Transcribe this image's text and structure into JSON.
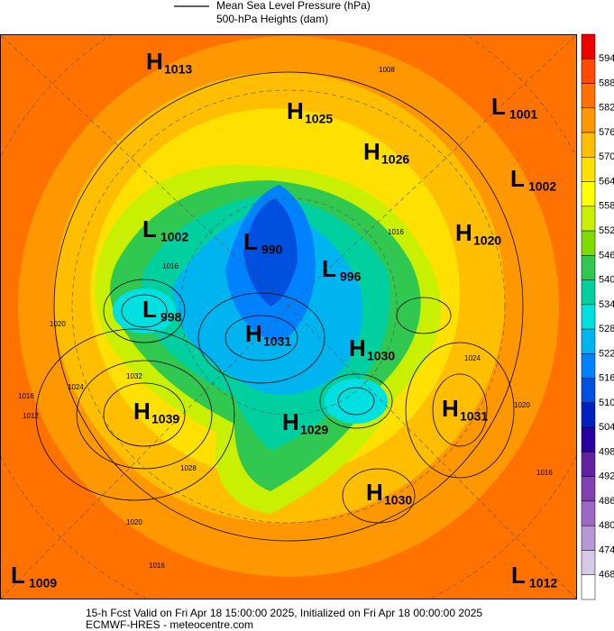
{
  "legend": {
    "items": [
      "Mean Sea Level Pressure (hPa)",
      "500-hPa Heights (dam)"
    ]
  },
  "centers": [
    {
      "letter": "H",
      "value": "1013"
    },
    {
      "letter": "H",
      "value": "1025"
    },
    {
      "letter": "H",
      "value": "1026"
    },
    {
      "letter": "L",
      "value": "1001"
    },
    {
      "letter": "L",
      "value": "1002"
    },
    {
      "letter": "L",
      "value": "1002"
    },
    {
      "letter": "L",
      "value": "990"
    },
    {
      "letter": "H",
      "value": "1020"
    },
    {
      "letter": "L",
      "value": "996"
    },
    {
      "letter": "L",
      "value": "998"
    },
    {
      "letter": "H",
      "value": "1031"
    },
    {
      "letter": "H",
      "value": "1030"
    },
    {
      "letter": "H",
      "value": "1039"
    },
    {
      "letter": "H",
      "value": "1031"
    },
    {
      "letter": "H",
      "value": "1029"
    },
    {
      "letter": "H",
      "value": "1030"
    },
    {
      "letter": "L",
      "value": "1009"
    },
    {
      "letter": "L",
      "value": "1012"
    }
  ],
  "contour_labels": [
    "1008",
    "1016",
    "1016",
    "1020",
    "1024",
    "1032",
    "1028",
    "1020",
    "1016",
    "1024",
    "1020",
    "1016",
    "1016",
    "1012"
  ],
  "colorbar": {
    "ticks": [
      594,
      588,
      582,
      576,
      570,
      564,
      558,
      552,
      546,
      540,
      534,
      528,
      522,
      516,
      510,
      504,
      498,
      492,
      486,
      480,
      474,
      468
    ],
    "colors": [
      "#ee0000",
      "#ff4a00",
      "#ff7200",
      "#ff9800",
      "#ffbe00",
      "#ffe000",
      "#ffff00",
      "#c8f000",
      "#80dc00",
      "#30c850",
      "#00d0a0",
      "#00e0e0",
      "#00b4f0",
      "#0082ff",
      "#0050e0",
      "#0020c0",
      "#2800a0",
      "#6020a0",
      "#8040b0",
      "#9c68c4",
      "#b898d4",
      "#d6c8e6",
      "#ffffff"
    ]
  },
  "footer": {
    "lines": [
      "15-h Fcst Valid on Fri Apr 18 15:00:00 2025, Initialized on Fri Apr 18 00:00:00 2025",
      "ECMWF-HRES  -  meteocentre.com"
    ]
  }
}
